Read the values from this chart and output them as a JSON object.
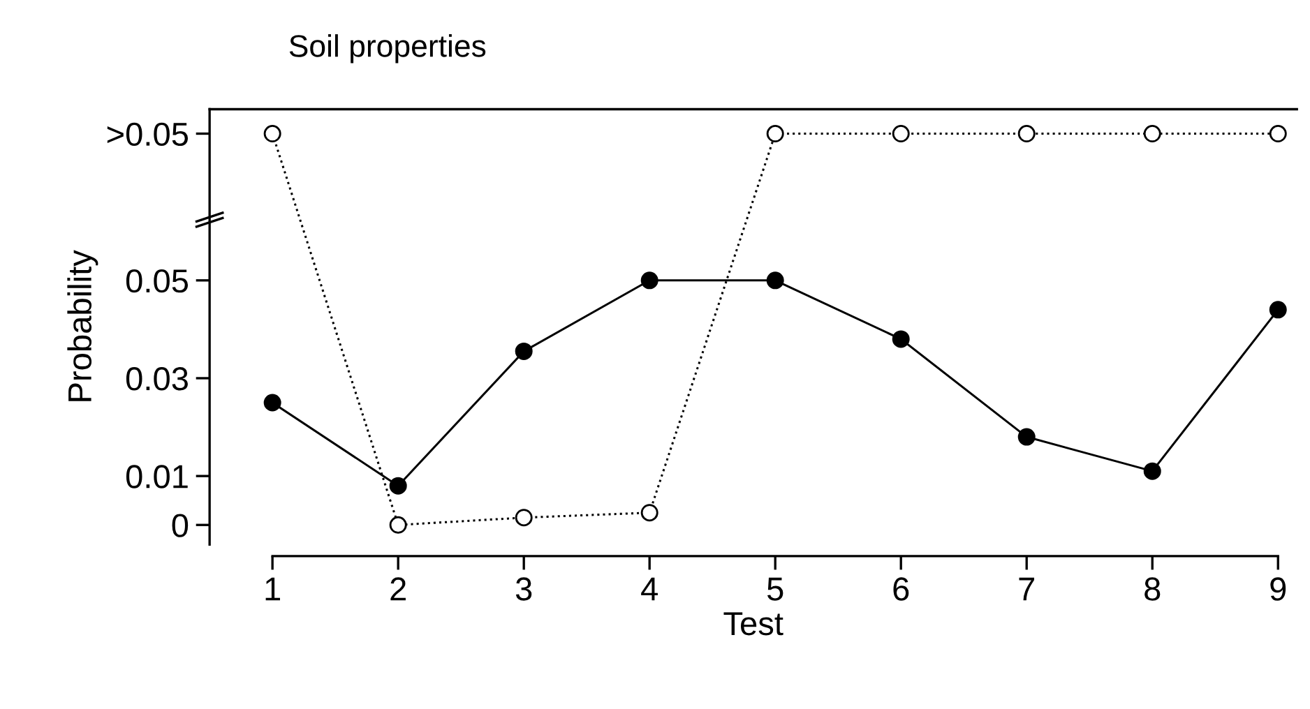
{
  "chart_data": {
    "type": "line",
    "title": "Soil properties",
    "xlabel": "Test",
    "ylabel": "Probability",
    "x": [
      1,
      2,
      3,
      4,
      5,
      6,
      7,
      8,
      9
    ],
    "xlim": [
      0.5,
      9.15
    ],
    "xticks": [
      1,
      2,
      3,
      4,
      5,
      6,
      7,
      8,
      9
    ],
    "ylim": [
      -0.004,
      0.085
    ],
    "yticks": [
      0,
      0.01,
      0.03,
      0.05,
      {
        "value": 0.08,
        "label": ">0.05"
      }
    ],
    "marker": "circle",
    "grid": false,
    "legend": false,
    "series": [
      {
        "color": "#000000",
        "line_style": "solid",
        "values": [
          0.025,
          0.008,
          0.0355,
          0.05,
          0.05,
          0.038,
          0.018,
          0.011,
          0.044
        ]
      },
      {
        "color": "#000000",
        "line_style": "dotted",
        "values": [
          0.08,
          0,
          0.0015,
          0.0025,
          0.08,
          0.08,
          0.08,
          0.08,
          0.08
        ]
      }
    ]
  }
}
